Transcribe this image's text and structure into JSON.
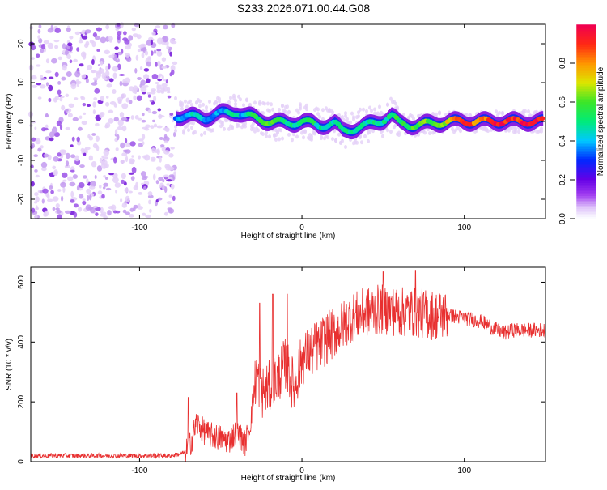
{
  "title": "S233.2026.071.00.44.G08",
  "chart_data": [
    {
      "type": "heatmap",
      "title": "S233.2026.071.00.44.G08",
      "xlabel": "Height of straight line (km)",
      "ylabel": "Frequency (Hz)",
      "xlim": [
        -167,
        150
      ],
      "ylim": [
        -25,
        25
      ],
      "xticks": [
        -100,
        0,
        100
      ],
      "yticks": [
        -20,
        -10,
        0,
        10,
        20
      ],
      "colorbar": {
        "label": "Normalized spectral amplitude",
        "range": [
          0,
          1
        ],
        "ticks": [
          0.0,
          0.2,
          0.4,
          0.6,
          0.8
        ],
        "tick_labels": [
          "0.0",
          "0.2",
          "0.4",
          "0.6",
          "0.8"
        ]
      },
      "trace": {
        "description": "dominant frequency ridge vs height",
        "x": [
          -78,
          -70,
          -60,
          -50,
          -40,
          -35,
          -30,
          -20,
          -10,
          0,
          10,
          20,
          25,
          30,
          40,
          50,
          55,
          60,
          70,
          80,
          90,
          100,
          110,
          120,
          130,
          140,
          148
        ],
        "y": [
          1.5,
          1.2,
          1.0,
          2.0,
          2.5,
          1.5,
          1.0,
          0.0,
          -0.5,
          0.0,
          -1.0,
          -0.5,
          -2.5,
          -2.0,
          -1.0,
          0.5,
          1.5,
          -0.5,
          -1.0,
          -0.5,
          0.0,
          0.0,
          0.0,
          0.0,
          0.0,
          0.0,
          0.0
        ],
        "amp": [
          0.35,
          0.4,
          0.4,
          0.4,
          0.45,
          0.4,
          0.55,
          0.6,
          0.5,
          0.5,
          0.5,
          0.45,
          0.45,
          0.45,
          0.5,
          0.5,
          0.5,
          0.55,
          0.6,
          0.6,
          0.7,
          0.9,
          0.8,
          0.95,
          0.9,
          0.95,
          0.95
        ]
      },
      "noise_region": {
        "x_from": -167,
        "x_to": -78,
        "amplitude_range": [
          0.0,
          0.1
        ]
      }
    },
    {
      "type": "line",
      "xlabel": "Height of straight line (km)",
      "ylabel": "SNR (10 * v/v)",
      "xlim": [
        -167,
        150
      ],
      "ylim": [
        0,
        650
      ],
      "xticks": [
        -100,
        0,
        100
      ],
      "yticks": [
        0,
        200,
        400,
        600
      ],
      "series": [
        {
          "name": "SNR",
          "color": "#e83030",
          "x": [
            -167,
            -140,
            -110,
            -80,
            -72,
            -68,
            -65,
            -62,
            -58,
            -50,
            -45,
            -40,
            -35,
            -32,
            -28,
            -25,
            -20,
            -15,
            -10,
            -5,
            0,
            10,
            20,
            30,
            40,
            50,
            60,
            70,
            80,
            90,
            100,
            110,
            120,
            125,
            130,
            140,
            150
          ],
          "y": [
            20,
            20,
            20,
            20,
            30,
            70,
            130,
            110,
            90,
            80,
            70,
            100,
            60,
            120,
            300,
            230,
            250,
            280,
            330,
            250,
            340,
            390,
            430,
            480,
            500,
            510,
            500,
            500,
            490,
            490,
            480,
            470,
            440,
            430,
            440,
            440,
            440
          ]
        }
      ],
      "spikes": [
        {
          "x": -70,
          "y": 215
        },
        {
          "x": -40,
          "y": 230
        },
        {
          "x": -26,
          "y": 530
        },
        {
          "x": -18,
          "y": 560
        },
        {
          "x": -9,
          "y": 560
        },
        {
          "x": 50,
          "y": 635
        },
        {
          "x": 70,
          "y": 640
        }
      ]
    }
  ]
}
